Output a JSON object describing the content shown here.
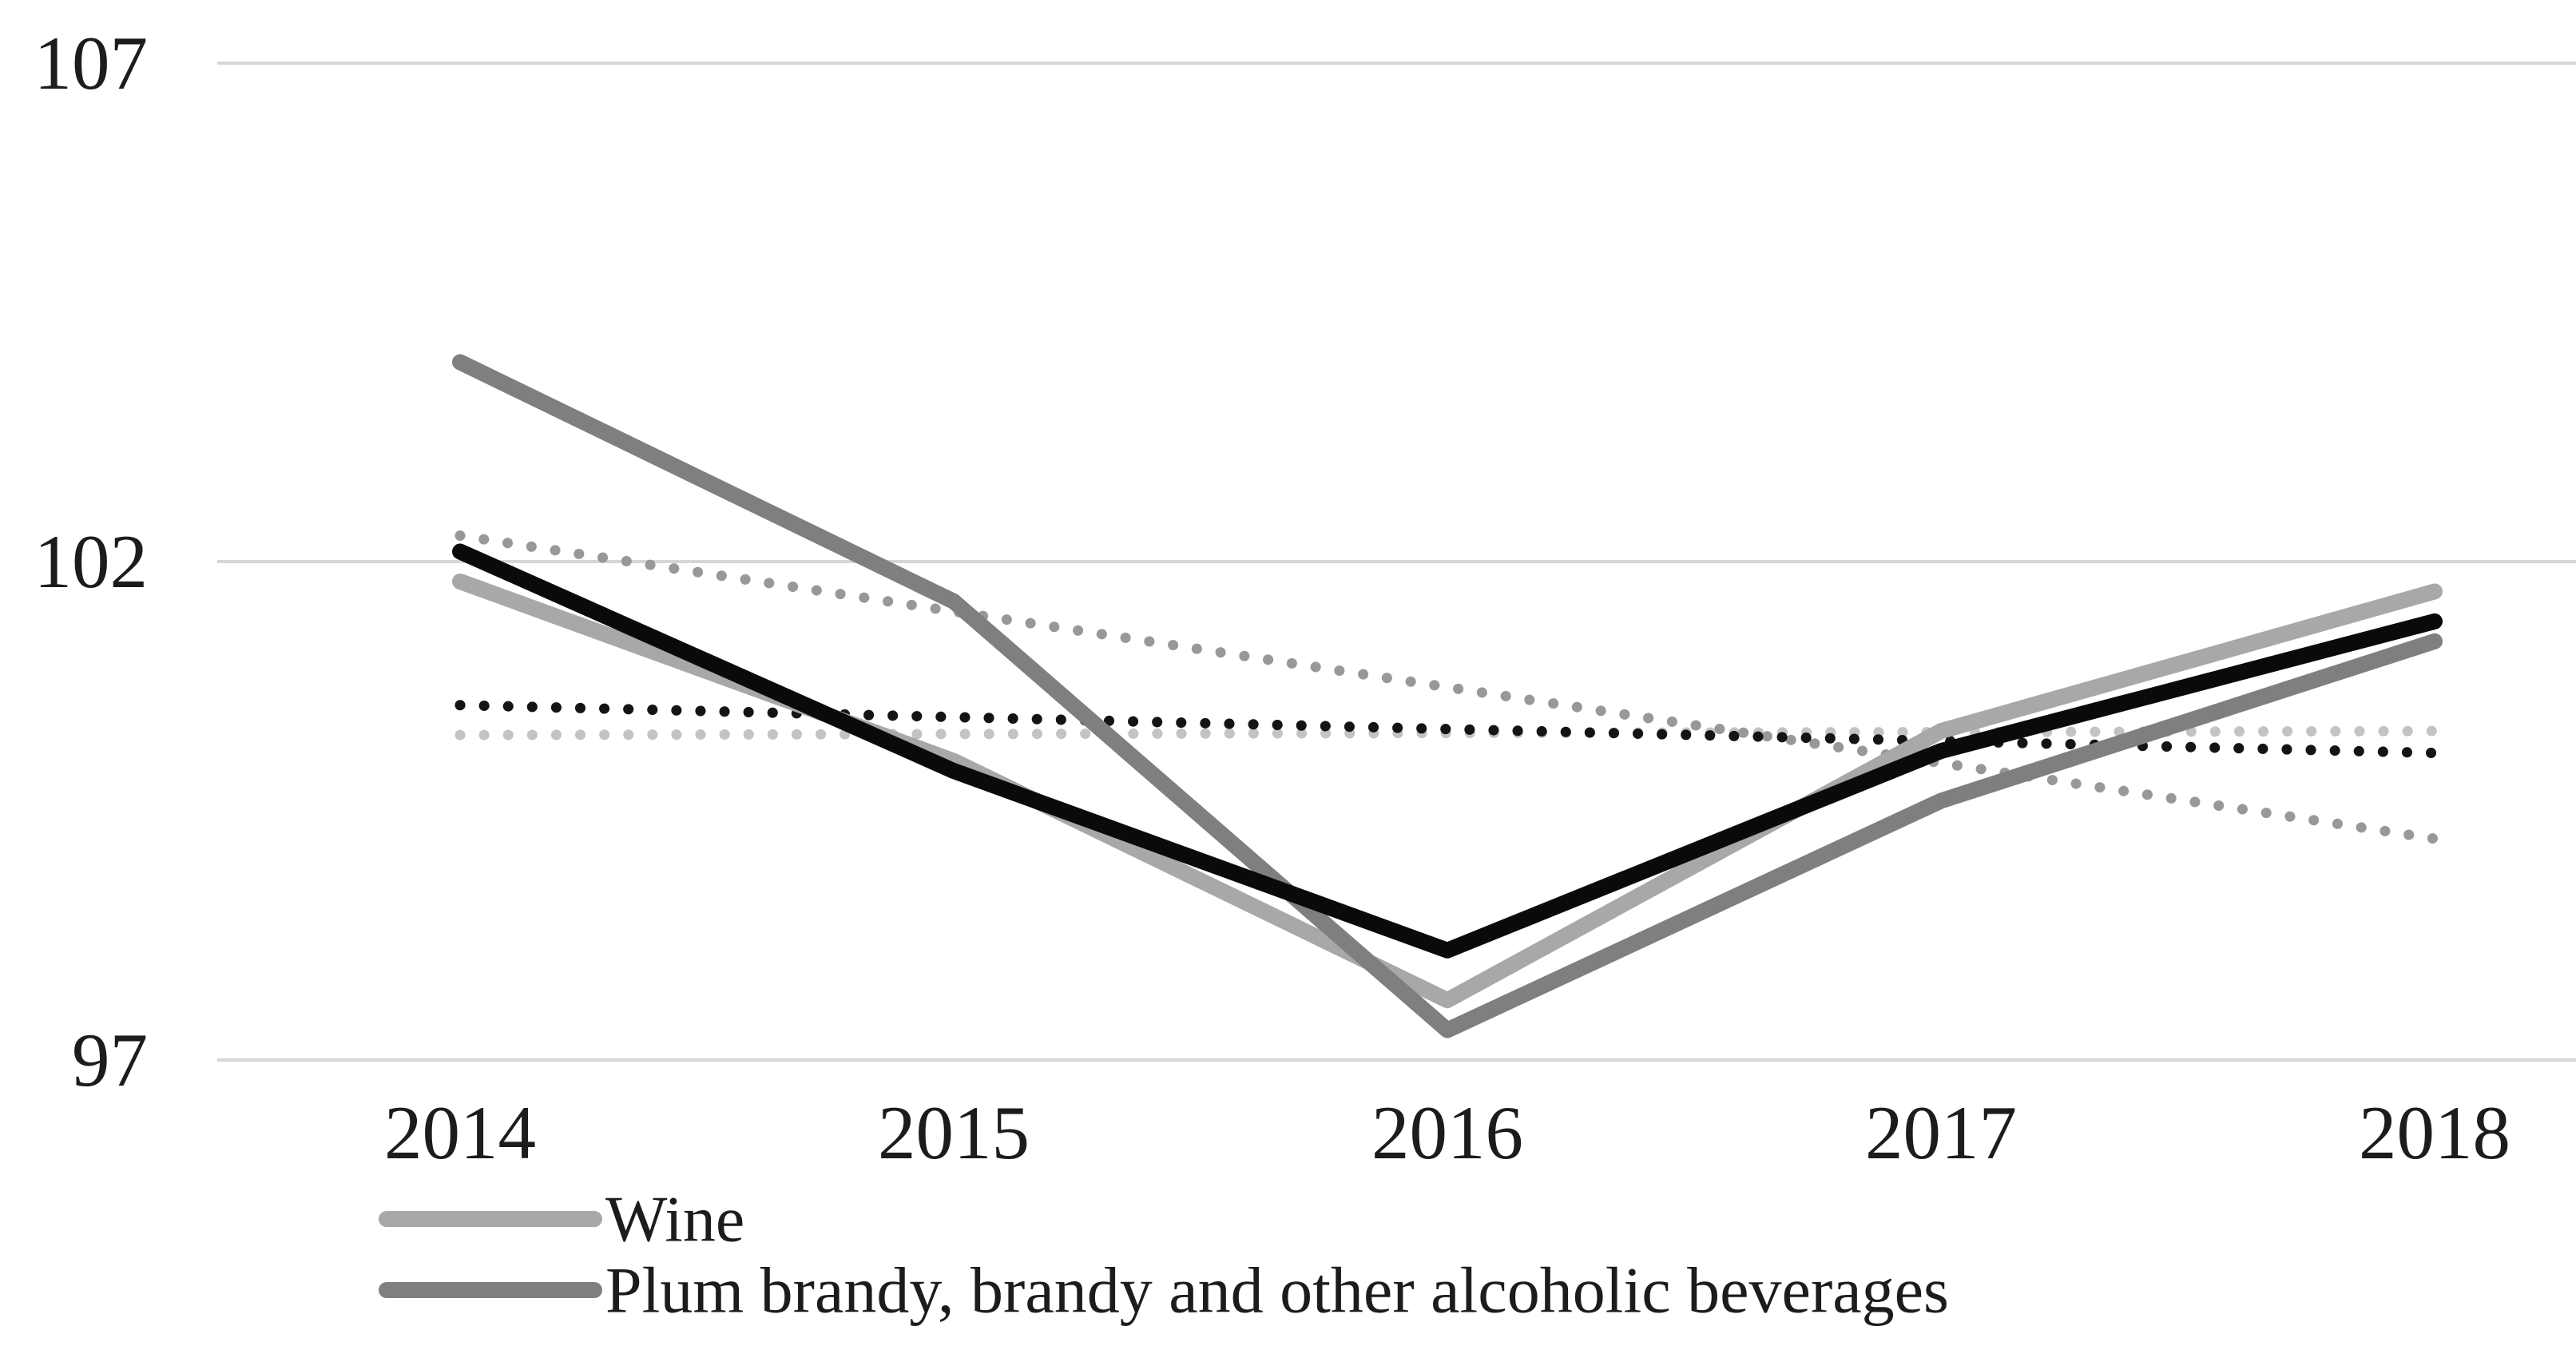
{
  "chart_data": {
    "type": "line",
    "title": "",
    "xlabel": "",
    "ylabel": "",
    "categories": [
      2014,
      2015,
      2016,
      2017,
      2018
    ],
    "yticks": [
      97,
      102,
      107
    ],
    "ylim": [
      96.6,
      107.1
    ],
    "grid": "horizontal",
    "legend_position": "bottom-left",
    "series": [
      {
        "id": "wine",
        "legend_label": "Wine",
        "values": [
          101.8,
          100.0,
          97.6,
          100.3,
          101.7
        ],
        "color": "#a8a8a8",
        "style": "solid"
      },
      {
        "id": "plum-brandy",
        "legend_label": "Plum brandy, brandy and other alcoholic beverages",
        "values": [
          104.0,
          101.6,
          97.3,
          99.6,
          101.2
        ],
        "color": "#7f7f7f",
        "style": "solid"
      },
      {
        "id": "black",
        "legend_label": "",
        "values": [
          102.1,
          99.9,
          98.1,
          100.1,
          101.4
        ],
        "color": "#0a0a0a",
        "style": "solid"
      }
    ],
    "trendlines": [
      {
        "id": "wine-trend",
        "series": "wine",
        "start_value": 100.26,
        "end_value": 100.3,
        "color": "#c3c3c3",
        "style": "dotted"
      },
      {
        "id": "plum-brandy-trend",
        "series": "plum-brandy",
        "start_value": 102.26,
        "end_value": 99.22,
        "color": "#989898",
        "style": "dotted"
      },
      {
        "id": "black-trend",
        "series": "black",
        "start_value": 100.56,
        "end_value": 100.08,
        "color": "#141414",
        "style": "dotted"
      }
    ]
  },
  "legend": {
    "items": [
      {
        "label": "Wine",
        "color": "#a8a8a8"
      },
      {
        "label": "Plum brandy, brandy and other alcoholic beverages",
        "color": "#7f7f7f"
      }
    ]
  },
  "axis": {
    "y_tick_labels": [
      "107",
      "102",
      "97"
    ],
    "x_tick_labels": [
      "2014",
      "2015",
      "2016",
      "2017",
      "2018"
    ]
  },
  "colors": {
    "background": "#ffffff",
    "gridline": "#d6d6d6",
    "text": "#1c1c1c"
  }
}
